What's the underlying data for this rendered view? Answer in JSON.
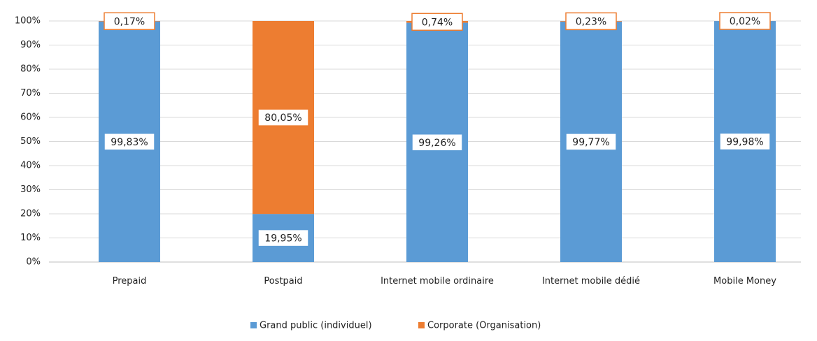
{
  "chart_data": {
    "type": "stacked_bar",
    "categories": [
      "Prepaid",
      "Postpaid",
      "Internet mobile ordinaire",
      "Internet mobile dédié",
      "Mobile Money"
    ],
    "series": [
      {
        "name": "Grand public (individuel)",
        "color": "#5b9bd5",
        "values": [
          99.83,
          19.95,
          99.26,
          99.77,
          99.98
        ],
        "value_labels": [
          "99,83%",
          "19,95%",
          "99,26%",
          "99,77%",
          "99,98%"
        ]
      },
      {
        "name": "Corporate (Organisation)",
        "color": "#ed7d31",
        "values": [
          0.17,
          80.05,
          0.74,
          0.23,
          0.02
        ],
        "value_labels": [
          "0,17%",
          "80,05%",
          "0,74%",
          "0,23%",
          "0,02%"
        ]
      }
    ],
    "ylim": [
      0,
      100
    ],
    "yticks": [
      {
        "value": 0,
        "label": "0%"
      },
      {
        "value": 10,
        "label": "10%"
      },
      {
        "value": 20,
        "label": "20%"
      },
      {
        "value": 30,
        "label": "30%"
      },
      {
        "value": 40,
        "label": "40%"
      },
      {
        "value": 50,
        "label": "50%"
      },
      {
        "value": 60,
        "label": "60%"
      },
      {
        "value": 70,
        "label": "70%"
      },
      {
        "value": 80,
        "label": "80%"
      },
      {
        "value": 90,
        "label": "90%"
      },
      {
        "value": 100,
        "label": "100%"
      }
    ],
    "grid": true,
    "legend": "bottom"
  }
}
